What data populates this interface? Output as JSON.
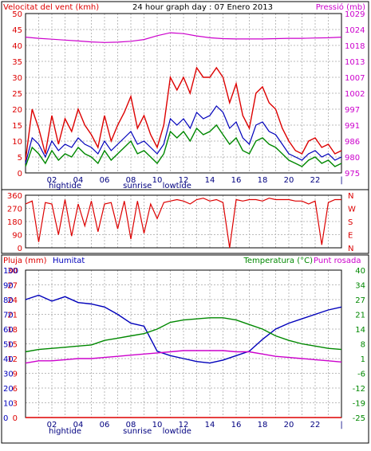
{
  "chart_data": [
    {
      "type": "line",
      "title": "24 hour graph day : 07 Enero 2013",
      "left_axis_label": "Velocitat del vent (kmh)",
      "right_axis_label": "Pressió (mb)",
      "left_ticks": [
        "0",
        "5",
        "10",
        "15",
        "20",
        "25",
        "30",
        "35",
        "40",
        "45",
        "50"
      ],
      "right_ticks": [
        "975",
        "980",
        "986",
        "991",
        "997",
        "1002",
        "1007",
        "1013",
        "1018",
        "1024",
        "1029"
      ],
      "x_ticks": [
        "02",
        "04",
        "06",
        "08",
        "10",
        "12",
        "14",
        "16",
        "18",
        "20",
        "22",
        "|"
      ],
      "markers": [
        "hightide",
        "sunrise",
        "lowtide"
      ],
      "ylim": [
        0,
        50
      ],
      "right_ylim": [
        975,
        1029
      ],
      "grid": true,
      "colors": {
        "gust": "#dd0000",
        "average": "#008800",
        "direction_speed": "#0000bb",
        "pressure": "#cc00cc"
      },
      "series": [
        {
          "key": "gust",
          "hours": [
            0,
            0.5,
            1,
            1.5,
            2,
            2.5,
            3,
            3.5,
            4,
            4.5,
            5,
            5.5,
            6,
            6.5,
            7,
            7.5,
            8,
            8.5,
            9,
            9.5,
            10,
            10.5,
            11,
            11.5,
            12,
            12.5,
            13,
            13.5,
            14,
            14.5,
            15,
            15.5,
            16,
            16.5,
            17,
            17.5,
            18,
            18.5,
            19,
            19.5,
            20,
            20.5,
            21,
            21.5,
            22,
            22.5,
            23,
            23.5,
            24
          ],
          "values": [
            4,
            20,
            14,
            6,
            18,
            9,
            17,
            13,
            20,
            15,
            12,
            8,
            18,
            10,
            15,
            19,
            24,
            14,
            18,
            12,
            8,
            15,
            30,
            26,
            30,
            25,
            33,
            30,
            30,
            33,
            30,
            22,
            28,
            18,
            14,
            25,
            27,
            22,
            20,
            14,
            10,
            7,
            6,
            10,
            11,
            8,
            9,
            6,
            7
          ]
        },
        {
          "key": "average",
          "hours": [
            0,
            0.5,
            1,
            1.5,
            2,
            2.5,
            3,
            3.5,
            4,
            4.5,
            5,
            5.5,
            6,
            6.5,
            7,
            7.5,
            8,
            8.5,
            9,
            9.5,
            10,
            10.5,
            11,
            11.5,
            12,
            12.5,
            13,
            13.5,
            14,
            14.5,
            15,
            15.5,
            16,
            16.5,
            17,
            17.5,
            18,
            18.5,
            19,
            19.5,
            20,
            20.5,
            21,
            21.5,
            22,
            22.5,
            23,
            23.5,
            24
          ],
          "values": [
            2,
            8,
            6,
            3,
            7,
            4,
            6,
            5,
            8,
            6,
            5,
            3,
            7,
            4,
            6,
            8,
            10,
            6,
            7,
            5,
            3,
            6,
            13,
            11,
            13,
            10,
            14,
            12,
            13,
            15,
            12,
            9,
            11,
            7,
            6,
            10,
            11,
            9,
            8,
            6,
            4,
            3,
            2,
            4,
            5,
            3,
            4,
            2,
            3
          ]
        },
        {
          "key": "direction_speed",
          "hours": [
            0,
            0.5,
            1,
            1.5,
            2,
            2.5,
            3,
            3.5,
            4,
            4.5,
            5,
            5.5,
            6,
            6.5,
            7,
            7.5,
            8,
            8.5,
            9,
            9.5,
            10,
            10.5,
            11,
            11.5,
            12,
            12.5,
            13,
            13.5,
            14,
            14.5,
            15,
            15.5,
            16,
            16.5,
            17,
            17.5,
            18,
            18.5,
            19,
            19.5,
            20,
            20.5,
            21,
            21.5,
            22,
            22.5,
            23,
            23.5,
            24
          ],
          "values": [
            3,
            11,
            9,
            5,
            10,
            7,
            9,
            8,
            11,
            9,
            8,
            6,
            10,
            7,
            9,
            11,
            13,
            9,
            10,
            8,
            6,
            9,
            17,
            15,
            17,
            14,
            19,
            17,
            18,
            21,
            19,
            14,
            16,
            11,
            9,
            15,
            16,
            13,
            12,
            9,
            6,
            5,
            4,
            6,
            7,
            5,
            6,
            4,
            5
          ]
        },
        {
          "key": "pressure",
          "hours": [
            0,
            1,
            2,
            3,
            4,
            5,
            6,
            7,
            8,
            9,
            10,
            11,
            12,
            13,
            14,
            15,
            16,
            17,
            18,
            19,
            20,
            21,
            22,
            23,
            24
          ],
          "values": [
            1021,
            1020.6,
            1020.3,
            1020,
            1019.7,
            1019.4,
            1019.2,
            1019.3,
            1019.6,
            1020.2,
            1021.5,
            1022.5,
            1022.2,
            1021.4,
            1020.8,
            1020.5,
            1020.4,
            1020.4,
            1020.4,
            1020.5,
            1020.6,
            1020.6,
            1020.7,
            1020.8,
            1021
          ]
        }
      ]
    },
    {
      "type": "line",
      "title": "",
      "left_ticks": [
        "0",
        "90",
        "180",
        "270",
        "360"
      ],
      "right_ticks": [
        "N",
        "W",
        "S",
        "E",
        "N"
      ],
      "ylim": [
        0,
        360
      ],
      "grid": true,
      "colors": {
        "direction": "#dd0000"
      },
      "series": [
        {
          "key": "direction",
          "hours": [
            0,
            0.5,
            1,
            1.5,
            2,
            2.5,
            3,
            3.5,
            4,
            4.5,
            5,
            5.5,
            6,
            6.5,
            7,
            7.5,
            8,
            8.5,
            9,
            9.5,
            10,
            10.5,
            11,
            11.5,
            12,
            12.5,
            13,
            13.5,
            14,
            14.5,
            15,
            15.5,
            16,
            16.5,
            17,
            17.5,
            18,
            18.5,
            19,
            19.5,
            20,
            20.5,
            21,
            21.5,
            22,
            22.5,
            23,
            23.5,
            24
          ],
          "values": [
            300,
            320,
            40,
            310,
            300,
            90,
            330,
            80,
            300,
            150,
            320,
            110,
            300,
            310,
            130,
            320,
            60,
            320,
            100,
            300,
            200,
            310,
            320,
            330,
            320,
            300,
            330,
            340,
            320,
            330,
            310,
            0,
            330,
            320,
            330,
            330,
            320,
            340,
            330,
            330,
            330,
            320,
            320,
            300,
            320,
            20,
            310,
            330,
            330
          ]
        }
      ]
    },
    {
      "type": "line",
      "title": "",
      "left_axis_label": "Pluja (mm)",
      "left_axis_label2": "Humitat",
      "right_axis_label": "Temperatura (°C)",
      "right_axis_label2": "Punt rosada",
      "rain_ticks": [
        "0",
        "3",
        "6",
        "9",
        "12",
        "15",
        "18",
        "21",
        "24",
        "27",
        "30"
      ],
      "humidity_ticks": [
        "0",
        "10",
        "20",
        "30",
        "40",
        "50",
        "60",
        "70",
        "80",
        "90",
        "100"
      ],
      "temp_ticks": [
        "-25",
        "-19",
        "-12",
        "-6",
        "1",
        "8",
        "14",
        "21",
        "27",
        "34",
        "40"
      ],
      "x_ticks": [
        "02",
        "04",
        "06",
        "08",
        "10",
        "12",
        "14",
        "16",
        "18",
        "20",
        "22",
        "|"
      ],
      "markers": [
        "hightide",
        "sunrise",
        "lowtide"
      ],
      "humidity_ylim": [
        0,
        100
      ],
      "temp_ylim": [
        -25,
        40
      ],
      "grid": true,
      "colors": {
        "rain": "#dd0000",
        "humidity": "#0000bb",
        "temperature": "#008800",
        "dew_point": "#cc00cc"
      },
      "series": [
        {
          "key": "rain",
          "hours": [
            0,
            24
          ],
          "values": [
            0,
            0
          ]
        },
        {
          "key": "humidity",
          "hours": [
            0,
            1,
            2,
            3,
            4,
            5,
            6,
            7,
            8,
            9,
            10,
            11,
            12,
            13,
            14,
            15,
            16,
            17,
            18,
            19,
            20,
            21,
            22,
            23,
            24
          ],
          "values": [
            80,
            83,
            79,
            82,
            78,
            77,
            75,
            70,
            64,
            62,
            45,
            42,
            40,
            38,
            37,
            39,
            42,
            45,
            53,
            60,
            64,
            67,
            70,
            73,
            75
          ]
        },
        {
          "key": "temperature",
          "hours": [
            0,
            1,
            2,
            3,
            4,
            5,
            6,
            7,
            8,
            9,
            10,
            11,
            12,
            13,
            14,
            15,
            16,
            17,
            18,
            19,
            20,
            21,
            22,
            23,
            24
          ],
          "values": [
            4,
            5,
            5.5,
            6,
            6.5,
            7,
            9,
            10,
            11,
            12,
            14,
            17,
            18,
            18.5,
            19,
            19,
            18,
            16,
            14,
            11,
            9,
            7.5,
            6.5,
            5.5,
            5
          ]
        },
        {
          "key": "dew_point",
          "hours": [
            0,
            1,
            2,
            3,
            4,
            5,
            6,
            7,
            8,
            9,
            10,
            11,
            12,
            13,
            14,
            15,
            16,
            17,
            18,
            19,
            20,
            21,
            22,
            23,
            24
          ],
          "values": [
            -1,
            0,
            0,
            0.5,
            1,
            1,
            1.5,
            2,
            2.5,
            3,
            3.5,
            4,
            4.5,
            4.5,
            4.5,
            4.5,
            4,
            4,
            3,
            2,
            1.5,
            1,
            0.5,
            0,
            -0.5
          ]
        }
      ]
    }
  ]
}
